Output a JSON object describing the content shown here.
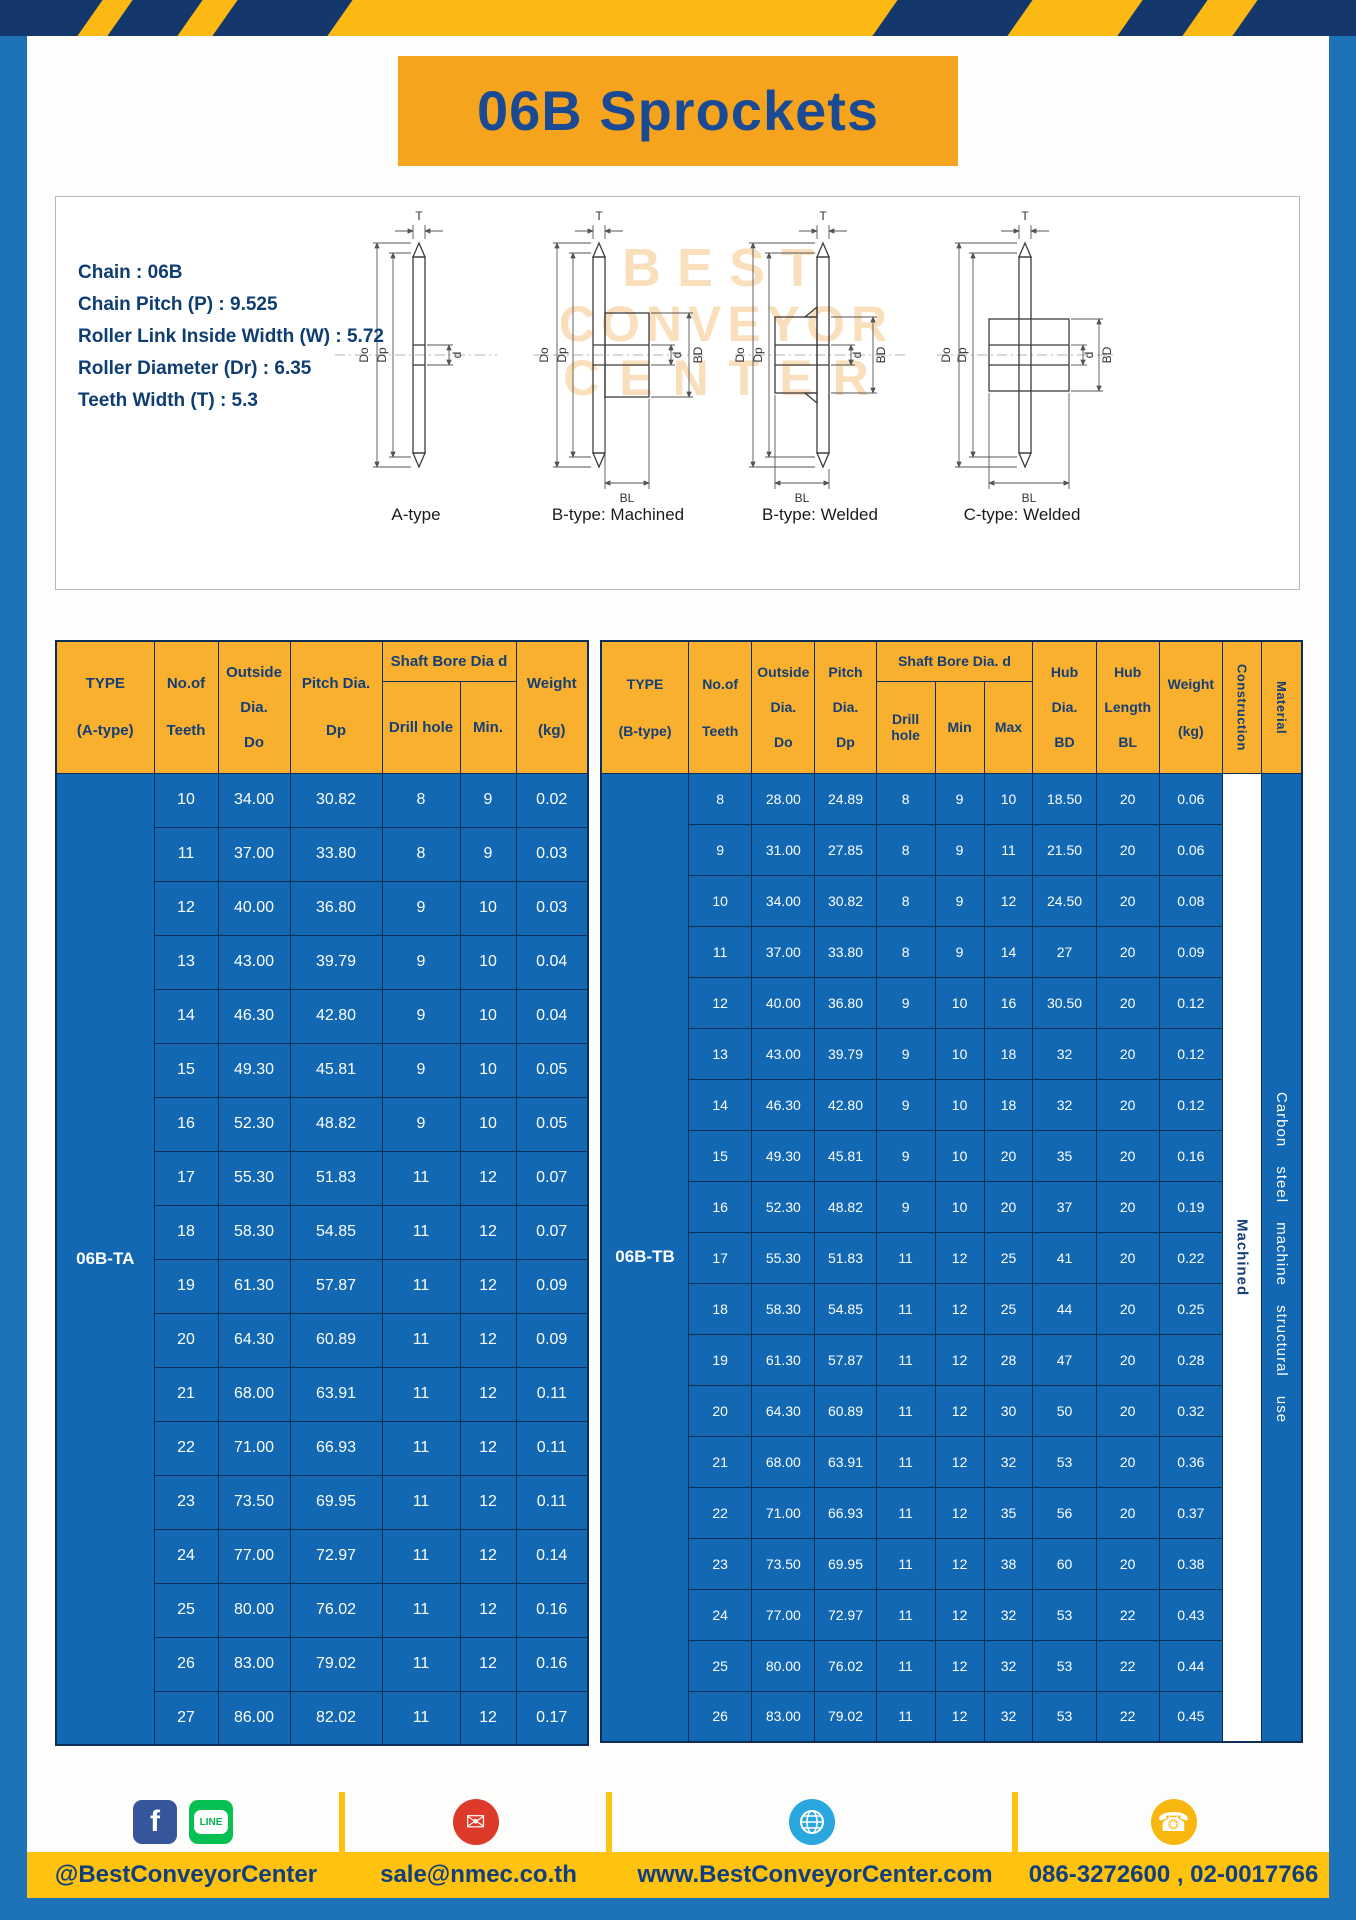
{
  "banner": {
    "title": "06B Sprockets"
  },
  "specs": {
    "lines": [
      "Chain : 06B",
      "Chain Pitch (P) : 9.525",
      "Roller Link Inside Width (W) : 5.72",
      "Roller Diameter (Dr) : 6.35",
      "Teeth Width (T) : 5.3"
    ]
  },
  "diagrams": {
    "watermark": [
      "BEST",
      "CONVEYOR",
      "CENTER"
    ],
    "captions": [
      "A-type",
      "B-type: Machined",
      "B-type: Welded",
      "C-type: Welded"
    ],
    "labels": {
      "t": "T",
      "dia_o": "Do",
      "dia_p": "Dp",
      "d": "d",
      "bd": "BD",
      "bl": "BL"
    }
  },
  "table_a": {
    "type_header": [
      "TYPE",
      "(A-type)"
    ],
    "col_headers": {
      "teeth": [
        "No.of",
        "Teeth"
      ],
      "outside": [
        "Outside",
        "Dia.",
        "Do"
      ],
      "pitch": [
        "Pitch Dia.",
        "Dp"
      ],
      "bore_group": "Shaft Bore Dia d",
      "drill": "Drill hole",
      "min": "Min.",
      "weight": [
        "Weight",
        "(kg)"
      ]
    },
    "type_label": "06B-TA",
    "rows": [
      [
        "10",
        "34.00",
        "30.82",
        "8",
        "9",
        "0.02"
      ],
      [
        "11",
        "37.00",
        "33.80",
        "8",
        "9",
        "0.03"
      ],
      [
        "12",
        "40.00",
        "36.80",
        "9",
        "10",
        "0.03"
      ],
      [
        "13",
        "43.00",
        "39.79",
        "9",
        "10",
        "0.04"
      ],
      [
        "14",
        "46.30",
        "42.80",
        "9",
        "10",
        "0.04"
      ],
      [
        "15",
        "49.30",
        "45.81",
        "9",
        "10",
        "0.05"
      ],
      [
        "16",
        "52.30",
        "48.82",
        "9",
        "10",
        "0.05"
      ],
      [
        "17",
        "55.30",
        "51.83",
        "11",
        "12",
        "0.07"
      ],
      [
        "18",
        "58.30",
        "54.85",
        "11",
        "12",
        "0.07"
      ],
      [
        "19",
        "61.30",
        "57.87",
        "11",
        "12",
        "0.09"
      ],
      [
        "20",
        "64.30",
        "60.89",
        "11",
        "12",
        "0.09"
      ],
      [
        "21",
        "68.00",
        "63.91",
        "11",
        "12",
        "0.11"
      ],
      [
        "22",
        "71.00",
        "66.93",
        "11",
        "12",
        "0.11"
      ],
      [
        "23",
        "73.50",
        "69.95",
        "11",
        "12",
        "0.11"
      ],
      [
        "24",
        "77.00",
        "72.97",
        "11",
        "12",
        "0.14"
      ],
      [
        "25",
        "80.00",
        "76.02",
        "11",
        "12",
        "0.16"
      ],
      [
        "26",
        "83.00",
        "79.02",
        "11",
        "12",
        "0.16"
      ],
      [
        "27",
        "86.00",
        "82.02",
        "11",
        "12",
        "0.17"
      ]
    ]
  },
  "table_b": {
    "type_header": [
      "TYPE",
      "(B-type)"
    ],
    "col_headers": {
      "teeth": [
        "No.of",
        "Teeth"
      ],
      "outside": [
        "Outside",
        "Dia.",
        "Do"
      ],
      "pitch": [
        "Pitch",
        "Dia.",
        "Dp"
      ],
      "bore_group": "Shaft Bore Dia. d",
      "drill": "Drill hole",
      "min": "Min",
      "max": "Max",
      "hub_dia": [
        "Hub",
        "Dia.",
        "BD"
      ],
      "hub_len": [
        "Hub",
        "Length",
        "BL"
      ],
      "weight": [
        "Weight",
        "(kg)"
      ],
      "construction": "Construction",
      "material": "Material"
    },
    "type_label": "06B-TB",
    "construction_value": "Machined",
    "material_value": "Carbon steel machine structural use",
    "rows": [
      [
        "8",
        "28.00",
        "24.89",
        "8",
        "9",
        "10",
        "18.50",
        "20",
        "0.06"
      ],
      [
        "9",
        "31.00",
        "27.85",
        "8",
        "9",
        "11",
        "21.50",
        "20",
        "0.06"
      ],
      [
        "10",
        "34.00",
        "30.82",
        "8",
        "9",
        "12",
        "24.50",
        "20",
        "0.08"
      ],
      [
        "11",
        "37.00",
        "33.80",
        "8",
        "9",
        "14",
        "27",
        "20",
        "0.09"
      ],
      [
        "12",
        "40.00",
        "36.80",
        "9",
        "10",
        "16",
        "30.50",
        "20",
        "0.12"
      ],
      [
        "13",
        "43.00",
        "39.79",
        "9",
        "10",
        "18",
        "32",
        "20",
        "0.12"
      ],
      [
        "14",
        "46.30",
        "42.80",
        "9",
        "10",
        "18",
        "32",
        "20",
        "0.12"
      ],
      [
        "15",
        "49.30",
        "45.81",
        "9",
        "10",
        "20",
        "35",
        "20",
        "0.16"
      ],
      [
        "16",
        "52.30",
        "48.82",
        "9",
        "10",
        "20",
        "37",
        "20",
        "0.19"
      ],
      [
        "17",
        "55.30",
        "51.83",
        "11",
        "12",
        "25",
        "41",
        "20",
        "0.22"
      ],
      [
        "18",
        "58.30",
        "54.85",
        "11",
        "12",
        "25",
        "44",
        "20",
        "0.25"
      ],
      [
        "19",
        "61.30",
        "57.87",
        "11",
        "12",
        "28",
        "47",
        "20",
        "0.28"
      ],
      [
        "20",
        "64.30",
        "60.89",
        "11",
        "12",
        "30",
        "50",
        "20",
        "0.32"
      ],
      [
        "21",
        "68.00",
        "63.91",
        "11",
        "12",
        "32",
        "53",
        "20",
        "0.36"
      ],
      [
        "22",
        "71.00",
        "66.93",
        "11",
        "12",
        "35",
        "56",
        "20",
        "0.37"
      ],
      [
        "23",
        "73.50",
        "69.95",
        "11",
        "12",
        "38",
        "60",
        "20",
        "0.38"
      ],
      [
        "24",
        "77.00",
        "72.97",
        "11",
        "12",
        "32",
        "53",
        "22",
        "0.43"
      ],
      [
        "25",
        "80.00",
        "76.02",
        "11",
        "12",
        "32",
        "53",
        "22",
        "0.44"
      ],
      [
        "26",
        "83.00",
        "79.02",
        "11",
        "12",
        "32",
        "53",
        "22",
        "0.45"
      ]
    ]
  },
  "footer": {
    "social": "@BestConveyorCenter",
    "email": "sale@nmec.co.th",
    "website": "www.BestConveyorCenter.com",
    "phone": "086-3272600 , 02-0017766",
    "icons": {
      "facebook": "f",
      "line": "LINE",
      "email": "✉",
      "phone": "☎"
    }
  }
}
